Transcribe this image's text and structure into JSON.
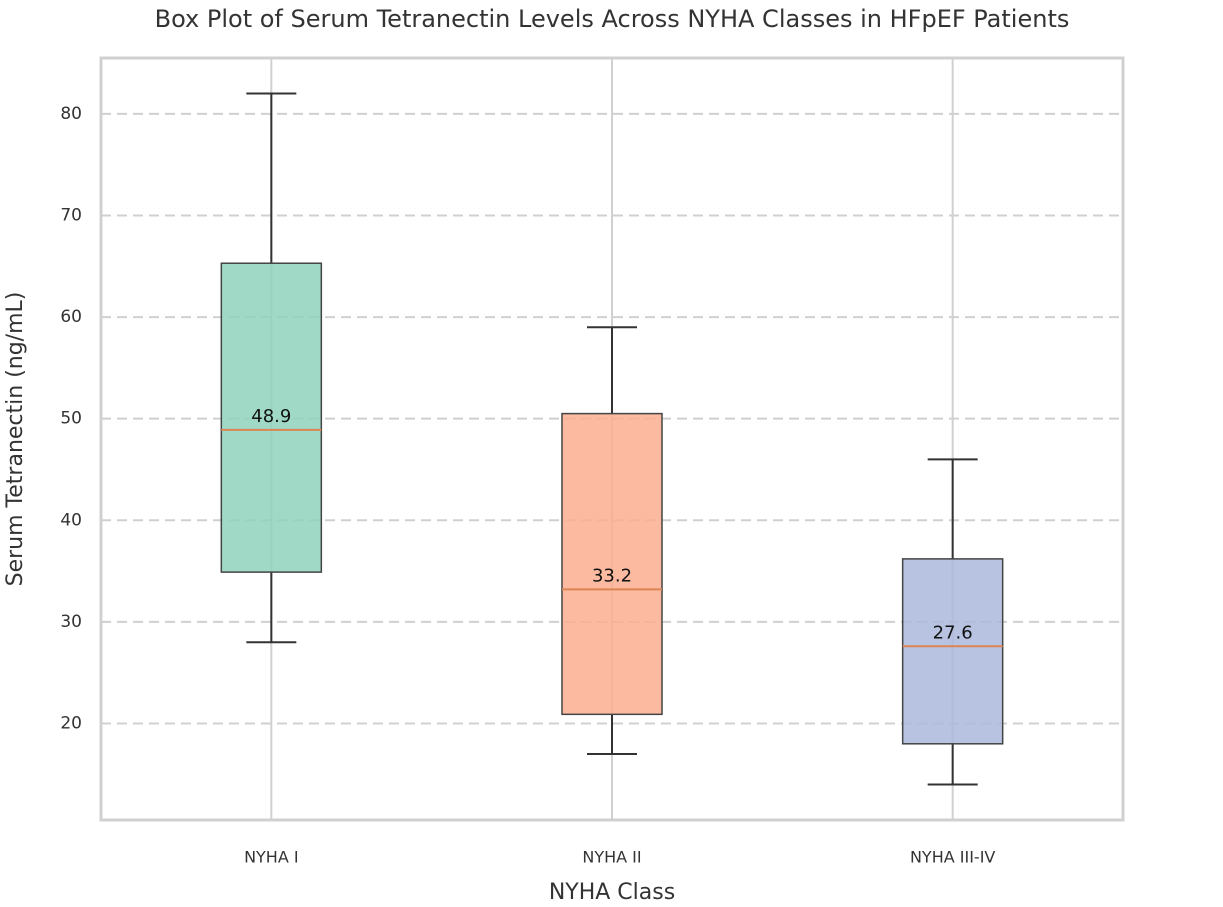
{
  "chart_data": {
    "type": "box",
    "title": "Box Plot of Serum Tetranectin Levels Across NYHA Classes in HFpEF Patients",
    "x_label": "NYHA Class",
    "y_label": "Serum Tetranectin (ng/mL)",
    "categories": [
      "NYHA I",
      "NYHA II",
      "NYHA III-IV"
    ],
    "min": [
      28,
      17,
      14
    ],
    "q1": [
      34.9,
      20.9,
      18
    ],
    "median": [
      48.9,
      33.2,
      27.6
    ],
    "q3": [
      65.3,
      50.5,
      36.2
    ],
    "max": [
      82,
      59,
      46
    ],
    "colors": [
      "#8fd4bc",
      "#fcae8f",
      "#abb9dc"
    ],
    "median_color": "#dd8452",
    "ylim": [
      10.5,
      85.5
    ],
    "yticks": [
      20,
      30,
      40,
      50,
      60,
      70,
      80
    ],
    "grid": true
  }
}
